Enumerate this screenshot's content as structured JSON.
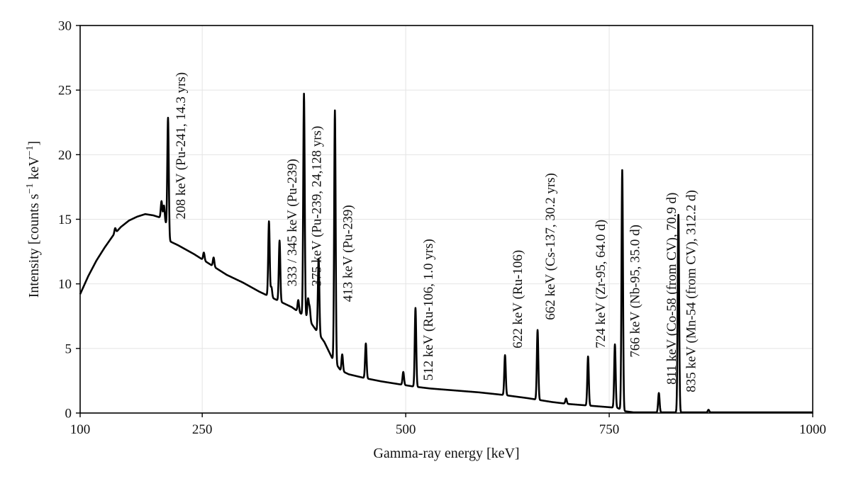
{
  "chart_data": {
    "type": "line",
    "title": "",
    "xlabel": "Gamma-ray energy [keV]",
    "ylabel_prefix": "Intensity [counts s",
    "ylabel_sup1": "−1",
    "ylabel_mid": " keV",
    "ylabel_sup2": "−1",
    "ylabel_suffix": "]",
    "xlim": [
      100,
      1000
    ],
    "ylim": [
      0,
      30
    ],
    "x_ticks": [
      100,
      250,
      500,
      750,
      1000
    ],
    "x_tick_labels": [
      "100",
      "250",
      "500",
      "750",
      "1000"
    ],
    "y_ticks": [
      0,
      5,
      10,
      15,
      20,
      25,
      30
    ],
    "y_tick_labels": [
      "0",
      "5",
      "10",
      "15",
      "20",
      "25",
      "30"
    ],
    "grid": true,
    "line_color": "#000000",
    "continuum": [
      [
        100,
        9.2
      ],
      [
        110,
        10.6
      ],
      [
        120,
        11.8
      ],
      [
        130,
        12.8
      ],
      [
        140,
        13.7
      ],
      [
        150,
        14.4
      ],
      [
        160,
        14.9
      ],
      [
        170,
        15.2
      ],
      [
        180,
        15.4
      ],
      [
        190,
        15.3
      ],
      [
        200,
        15.1
      ],
      [
        205,
        14.7
      ],
      [
        210,
        13.3
      ],
      [
        220,
        13.0
      ],
      [
        240,
        12.3
      ],
      [
        260,
        11.5
      ],
      [
        280,
        10.7
      ],
      [
        300,
        10.1
      ],
      [
        320,
        9.4
      ],
      [
        340,
        8.8
      ],
      [
        360,
        8.2
      ],
      [
        380,
        7.3
      ],
      [
        400,
        5.5
      ],
      [
        410,
        4.2
      ],
      [
        420,
        3.3
      ],
      [
        430,
        3.0
      ],
      [
        450,
        2.7
      ],
      [
        470,
        2.45
      ],
      [
        490,
        2.25
      ],
      [
        510,
        2.05
      ],
      [
        530,
        1.9
      ],
      [
        560,
        1.75
      ],
      [
        590,
        1.6
      ],
      [
        620,
        1.4
      ],
      [
        650,
        1.15
      ],
      [
        680,
        0.85
      ],
      [
        700,
        0.7
      ],
      [
        730,
        0.55
      ],
      [
        760,
        0.4
      ],
      [
        768,
        0.15
      ],
      [
        780,
        0.05
      ],
      [
        1000,
        0.05
      ]
    ],
    "peaks": [
      {
        "x": 143,
        "height": 0.4
      },
      {
        "x": 200,
        "height": 1.3
      },
      {
        "x": 203,
        "height": 1.2
      },
      {
        "x": 208,
        "height": 9.0
      },
      {
        "x": 252,
        "height": 0.6
      },
      {
        "x": 264,
        "height": 0.7
      },
      {
        "x": 332,
        "height": 5.8
      },
      {
        "x": 335,
        "height": 0.8
      },
      {
        "x": 345,
        "height": 4.7
      },
      {
        "x": 368,
        "height": 0.9
      },
      {
        "x": 375,
        "height": 17.2
      },
      {
        "x": 380,
        "height": 1.5
      },
      {
        "x": 382,
        "height": 1.0
      },
      {
        "x": 393,
        "height": 5.8
      },
      {
        "x": 413,
        "height": 19.5
      },
      {
        "x": 422,
        "height": 1.3
      },
      {
        "x": 451,
        "height": 2.7
      },
      {
        "x": 497,
        "height": 1.0
      },
      {
        "x": 512,
        "height": 6.1
      },
      {
        "x": 622,
        "height": 3.1
      },
      {
        "x": 662,
        "height": 5.4
      },
      {
        "x": 697,
        "height": 0.4
      },
      {
        "x": 724,
        "height": 3.8
      },
      {
        "x": 757,
        "height": 4.9
      },
      {
        "x": 766,
        "height": 18.6
      },
      {
        "x": 811,
        "height": 1.5
      },
      {
        "x": 835,
        "height": 15.3
      },
      {
        "x": 872,
        "height": 0.2
      }
    ],
    "annotations": [
      {
        "text": "208 keV (Pu-241, 14.3 yrs)",
        "x": 208,
        "y": 15.0
      },
      {
        "text": "333 / 345 keV (Pu-239)",
        "x": 345,
        "y": 9.8
      },
      {
        "text": "375 keV (Pu-239, 24,128 yrs)",
        "x": 375,
        "y": 9.8
      },
      {
        "text": "413 keV (Pu-239)",
        "x": 413,
        "y": 8.6
      },
      {
        "text": "512 keV (Ru-106, 1.0 yrs)",
        "x": 512,
        "y": 2.5
      },
      {
        "text": "622 keV (Ru-106)",
        "x": 622,
        "y": 5.0
      },
      {
        "text": "662 keV (Cs-137, 30.2 yrs)",
        "x": 662,
        "y": 7.2
      },
      {
        "text": "724 keV (Zr-95, 64.0 d)",
        "x": 724,
        "y": 5.0
      },
      {
        "text": "766 keV (Nb-95, 35.0 d)",
        "x": 766,
        "y": 4.3
      },
      {
        "text": "811 keV (Co-58 (from CV), 70.9 d)",
        "x": 811,
        "y": 2.2
      },
      {
        "text": "835 keV (Mn-54 (from CV), 312.2 d)",
        "x": 835,
        "y": 1.6
      }
    ]
  }
}
